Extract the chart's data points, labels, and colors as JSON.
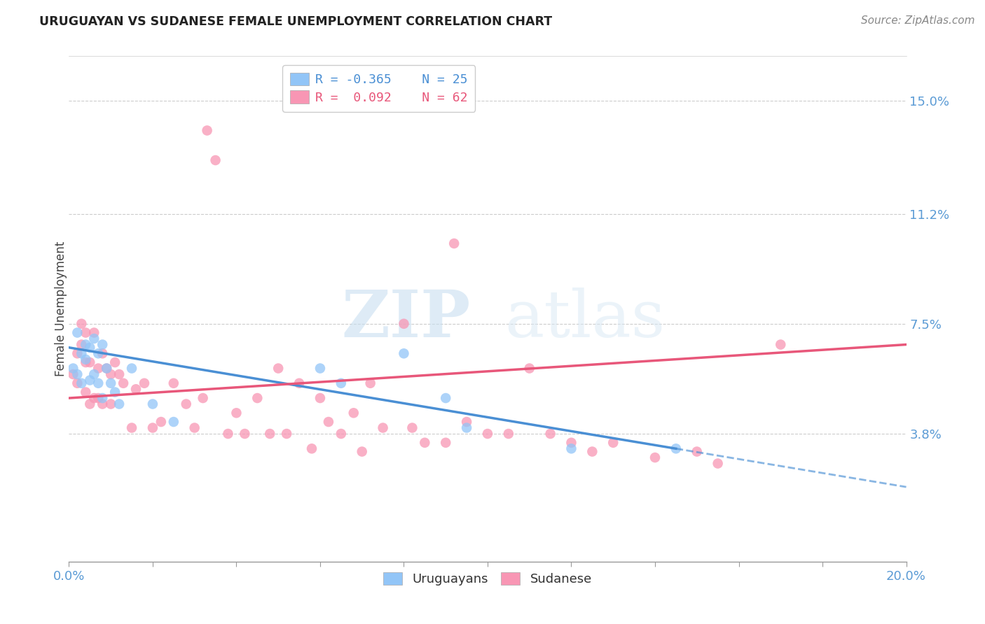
{
  "title": "URUGUAYAN VS SUDANESE FEMALE UNEMPLOYMENT CORRELATION CHART",
  "source": "Source: ZipAtlas.com",
  "ylabel": "Female Unemployment",
  "xlim": [
    0.0,
    0.2
  ],
  "ylim": [
    -0.005,
    0.165
  ],
  "xticks": [
    0.0,
    0.02,
    0.04,
    0.06,
    0.08,
    0.1,
    0.12,
    0.14,
    0.16,
    0.18,
    0.2
  ],
  "xticklabels": [
    "0.0%",
    "",
    "",
    "",
    "",
    "",
    "",
    "",
    "",
    "",
    "20.0%"
  ],
  "ytick_positions": [
    0.038,
    0.075,
    0.112,
    0.15
  ],
  "ytick_labels": [
    "3.8%",
    "7.5%",
    "11.2%",
    "15.0%"
  ],
  "color_uruguayan": "#92c5f7",
  "color_sudanese": "#f896b4",
  "color_line_uruguayan": "#4a8fd4",
  "color_line_sudanese": "#e8577a",
  "watermark_zip": "ZIP",
  "watermark_atlas": "atlas",
  "uruguayan_x": [
    0.001,
    0.002,
    0.002,
    0.003,
    0.003,
    0.004,
    0.004,
    0.005,
    0.005,
    0.006,
    0.006,
    0.007,
    0.007,
    0.008,
    0.008,
    0.009,
    0.01,
    0.011,
    0.012,
    0.015,
    0.02,
    0.025,
    0.06,
    0.065,
    0.08,
    0.09,
    0.095,
    0.12,
    0.145
  ],
  "uruguayan_y": [
    0.06,
    0.058,
    0.072,
    0.065,
    0.055,
    0.063,
    0.068,
    0.067,
    0.056,
    0.07,
    0.058,
    0.065,
    0.055,
    0.068,
    0.05,
    0.06,
    0.055,
    0.052,
    0.048,
    0.06,
    0.048,
    0.042,
    0.06,
    0.055,
    0.065,
    0.05,
    0.04,
    0.033,
    0.033
  ],
  "sudanese_x": [
    0.001,
    0.002,
    0.002,
    0.003,
    0.003,
    0.004,
    0.004,
    0.004,
    0.005,
    0.005,
    0.006,
    0.006,
    0.007,
    0.007,
    0.008,
    0.008,
    0.009,
    0.01,
    0.01,
    0.011,
    0.012,
    0.013,
    0.015,
    0.016,
    0.018,
    0.02,
    0.022,
    0.025,
    0.028,
    0.03,
    0.032,
    0.033,
    0.035,
    0.038,
    0.04,
    0.042,
    0.045,
    0.048,
    0.05,
    0.052,
    0.055,
    0.058,
    0.06,
    0.062,
    0.065,
    0.068,
    0.07,
    0.072,
    0.075,
    0.08,
    0.082,
    0.085,
    0.09,
    0.092,
    0.095,
    0.1,
    0.105,
    0.11,
    0.115,
    0.12,
    0.125,
    0.13,
    0.14,
    0.15,
    0.155,
    0.17
  ],
  "sudanese_y": [
    0.058,
    0.065,
    0.055,
    0.075,
    0.068,
    0.072,
    0.052,
    0.062,
    0.062,
    0.048,
    0.072,
    0.05,
    0.06,
    0.05,
    0.065,
    0.048,
    0.06,
    0.058,
    0.048,
    0.062,
    0.058,
    0.055,
    0.04,
    0.053,
    0.055,
    0.04,
    0.042,
    0.055,
    0.048,
    0.04,
    0.05,
    0.14,
    0.13,
    0.038,
    0.045,
    0.038,
    0.05,
    0.038,
    0.06,
    0.038,
    0.055,
    0.033,
    0.05,
    0.042,
    0.038,
    0.045,
    0.032,
    0.055,
    0.04,
    0.075,
    0.04,
    0.035,
    0.035,
    0.102,
    0.042,
    0.038,
    0.038,
    0.06,
    0.038,
    0.035,
    0.032,
    0.035,
    0.03,
    0.032,
    0.028,
    0.068
  ],
  "uru_line_x0": 0.0,
  "uru_line_y0": 0.067,
  "uru_line_x1": 0.145,
  "uru_line_y1": 0.033,
  "sud_line_x0": 0.0,
  "sud_line_y0": 0.05,
  "sud_line_x1": 0.2,
  "sud_line_y1": 0.068
}
